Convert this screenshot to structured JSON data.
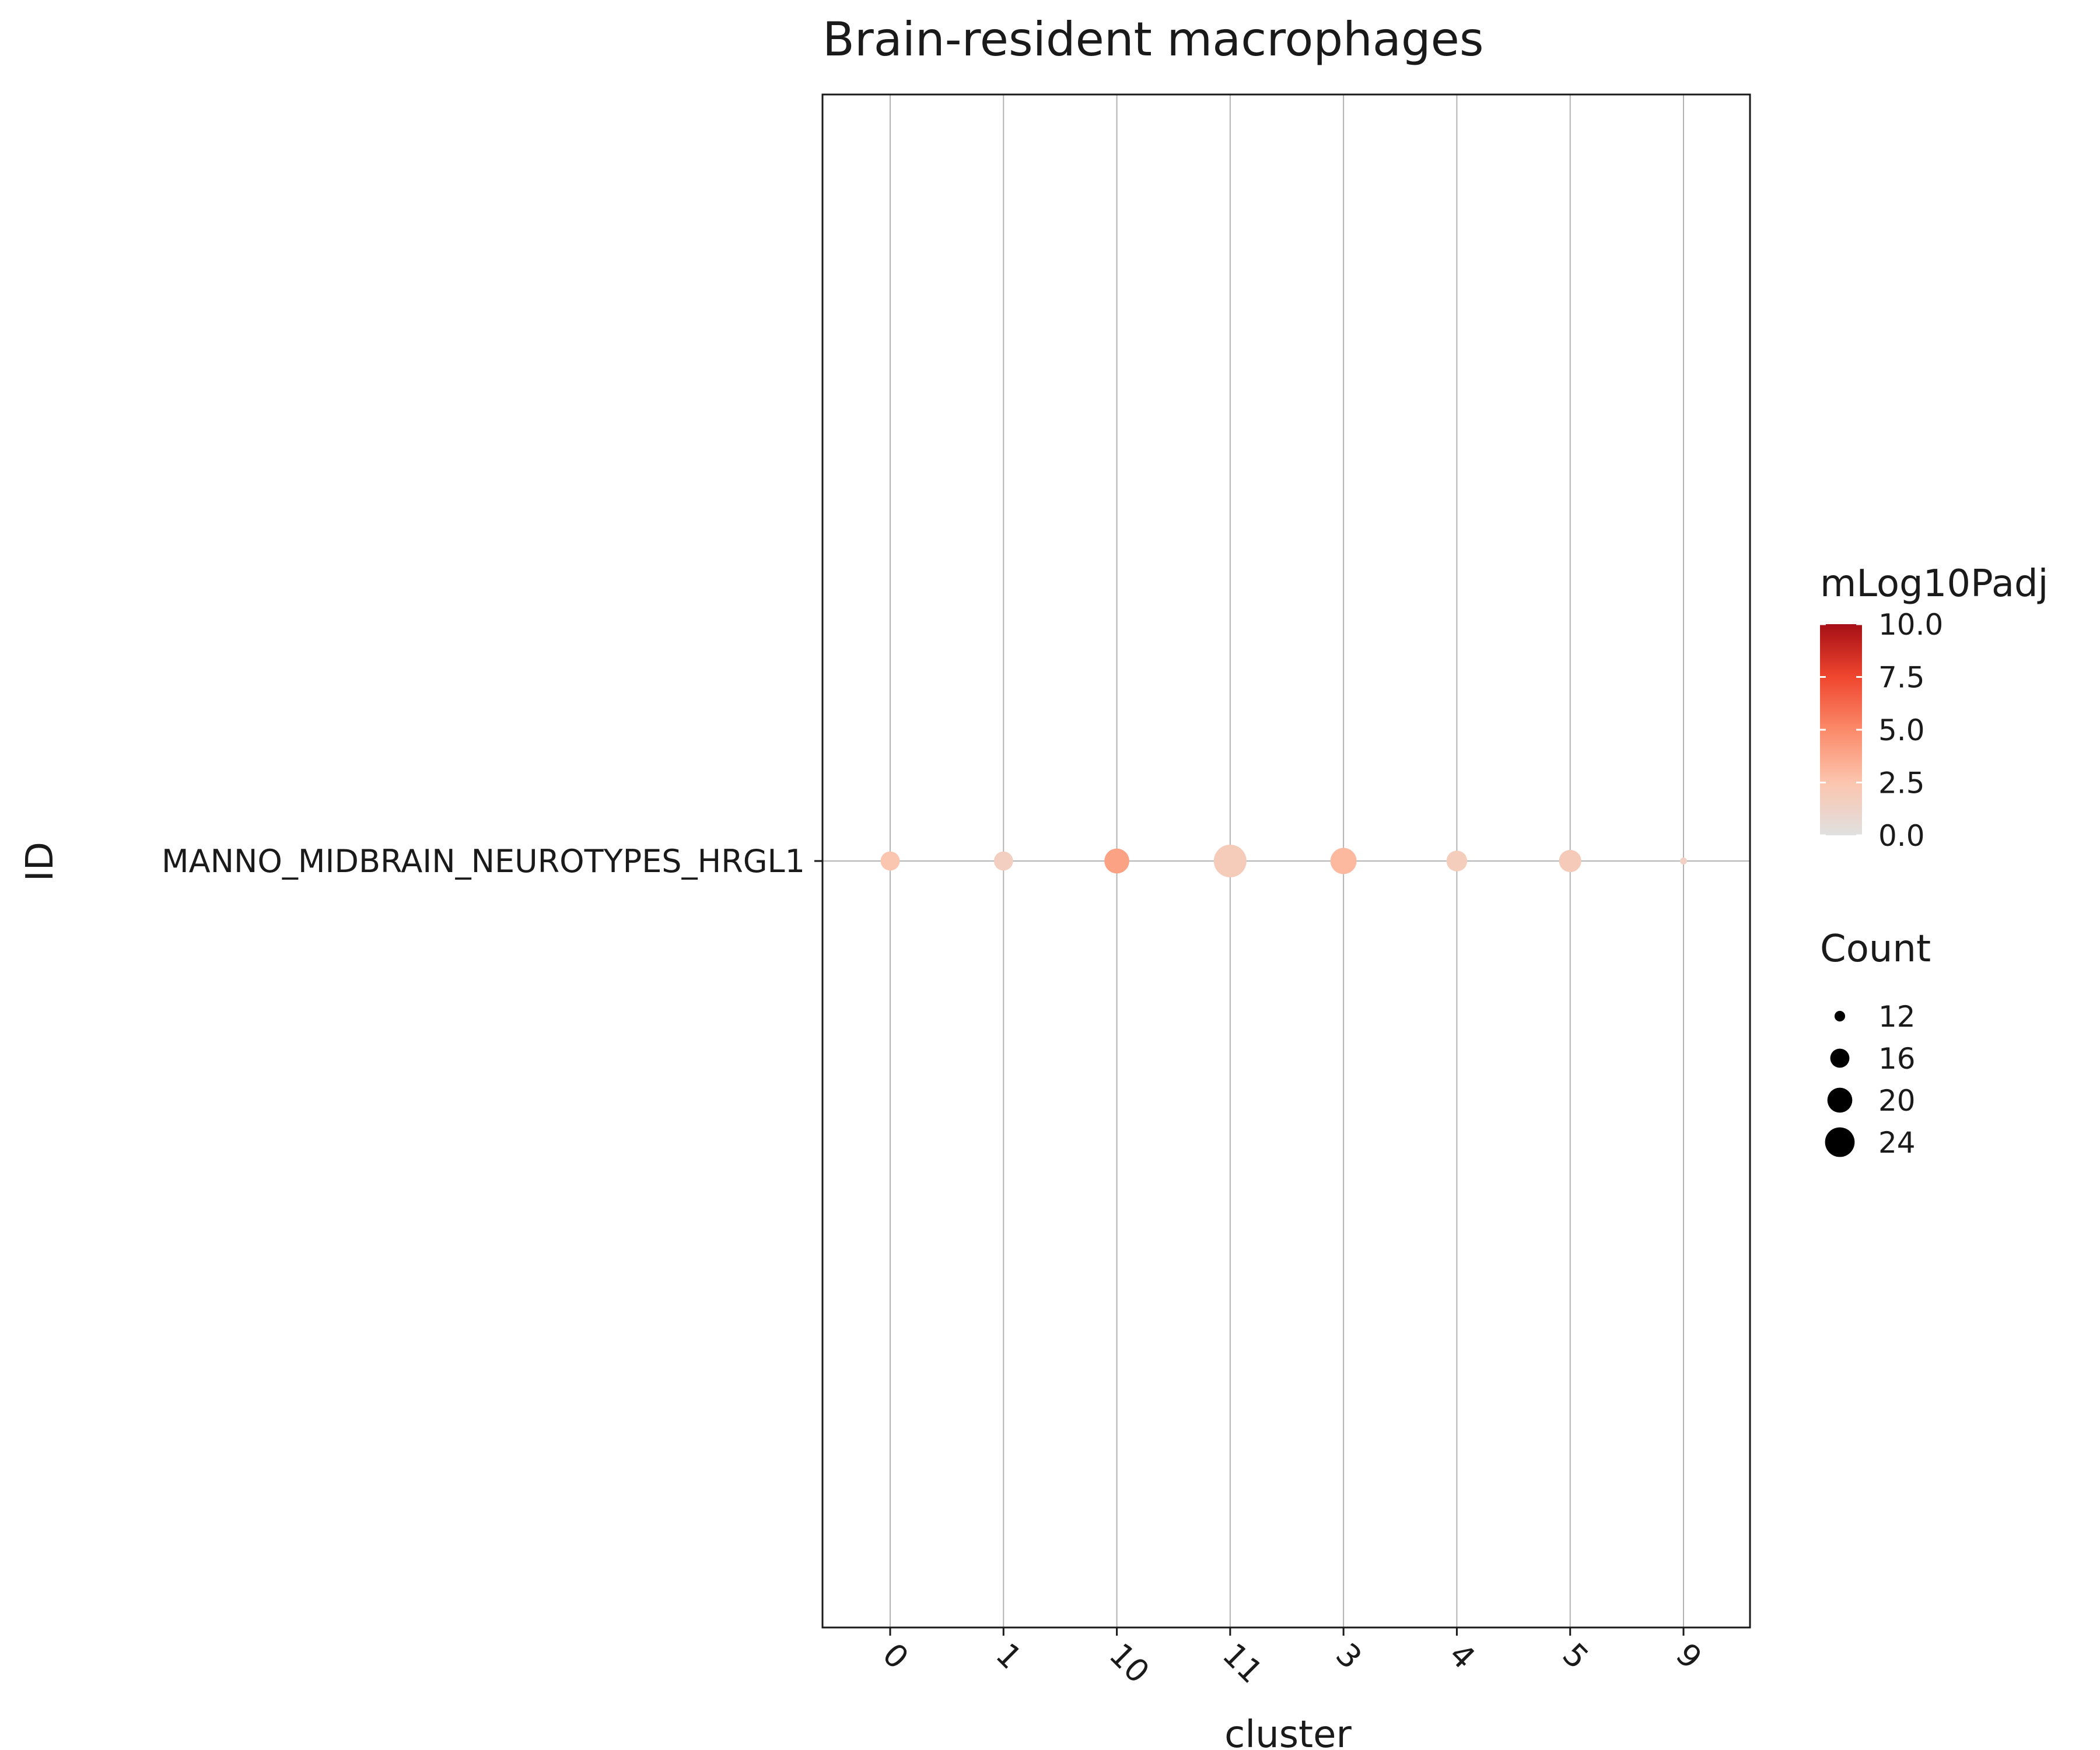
{
  "chart_data": {
    "type": "scatter",
    "title": "Brain-resident macrophages",
    "xlabel": "cluster",
    "ylabel": "ID",
    "categories": [
      "0",
      "1",
      "10",
      "11",
      "3",
      "4",
      "5",
      "9"
    ],
    "y_categories": [
      "MANNO_MIDBRAIN_NEUROTYPES_HRGL1"
    ],
    "grid": true,
    "series": [
      {
        "points": [
          {
            "cluster": "0",
            "ID": "MANNO_MIDBRAIN_NEUROTYPES_HRGL1",
            "Count": 16,
            "mLog10Padj": 2.4
          },
          {
            "cluster": "1",
            "ID": "MANNO_MIDBRAIN_NEUROTYPES_HRGL1",
            "Count": 16,
            "mLog10Padj": 1.6
          },
          {
            "cluster": "10",
            "ID": "MANNO_MIDBRAIN_NEUROTYPES_HRGL1",
            "Count": 20,
            "mLog10Padj": 4.0
          },
          {
            "cluster": "11",
            "ID": "MANNO_MIDBRAIN_NEUROTYPES_HRGL1",
            "Count": 27,
            "mLog10Padj": 1.9
          },
          {
            "cluster": "3",
            "ID": "MANNO_MIDBRAIN_NEUROTYPES_HRGL1",
            "Count": 21,
            "mLog10Padj": 3.0
          },
          {
            "cluster": "4",
            "ID": "MANNO_MIDBRAIN_NEUROTYPES_HRGL1",
            "Count": 17,
            "mLog10Padj": 1.8
          },
          {
            "cluster": "5",
            "ID": "MANNO_MIDBRAIN_NEUROTYPES_HRGL1",
            "Count": 18,
            "mLog10Padj": 2.0
          },
          {
            "cluster": "9",
            "ID": "MANNO_MIDBRAIN_NEUROTYPES_HRGL1",
            "Count": 11,
            "mLog10Padj": 1.4
          }
        ]
      }
    ],
    "color_legend": {
      "title": "mLog10Padj",
      "min": 0,
      "max": 10,
      "ticks": [
        "0.0",
        "2.5",
        "5.0",
        "7.5",
        "10.0"
      ],
      "colors": [
        "#e0e0e0",
        "#fcc5ae",
        "#fb8a6a",
        "#f0462f",
        "#a50f15"
      ]
    },
    "size_legend": {
      "title": "Count",
      "ticks": [
        12,
        16,
        20,
        24
      ],
      "labels": [
        "12",
        "16",
        "20",
        "24"
      ]
    },
    "legend_position": "right"
  }
}
